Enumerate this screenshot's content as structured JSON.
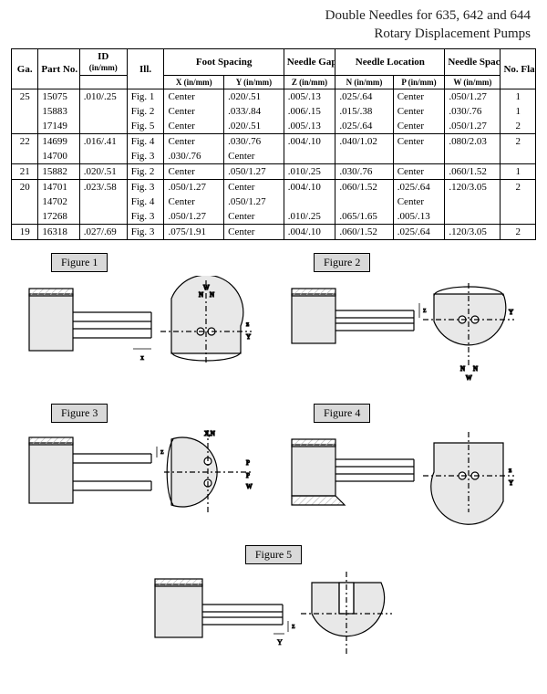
{
  "title_line1": "Double Needles for 635, 642 and 644",
  "title_line2": "Rotary Displacement Pumps",
  "headers": {
    "ga": "Ga.",
    "part_no": "Part No.",
    "id": "ID",
    "id_sub": "(in/mm)",
    "ill": "Ill.",
    "foot_spacing": "Foot Spacing",
    "x": "X (in/mm)",
    "y": "Y (in/mm)",
    "needle_gap": "Needle Gap",
    "z": "Z (in/mm)",
    "needle_loc": "Needle Location",
    "n": "N (in/mm)",
    "p": "P (in/mm)",
    "needle_spacing": "Needle Spacing",
    "w": "W (in/mm)",
    "flats": "No. Flats"
  },
  "rows": [
    {
      "ga": "25",
      "part": "15075",
      "id": ".010/.25",
      "ill": "Fig. 1",
      "x": "Center",
      "y": ".020/.51",
      "z": ".005/.13",
      "n": ".025/.64",
      "p": "Center",
      "w": ".050/1.27",
      "flats": "1"
    },
    {
      "ga": "",
      "part": "15883",
      "id": "",
      "ill": "Fig. 2",
      "x": "Center",
      "y": ".033/.84",
      "z": ".006/.15",
      "n": ".015/.38",
      "p": "Center",
      "w": ".030/.76",
      "flats": "1"
    },
    {
      "ga": "",
      "part": "17149",
      "id": "",
      "ill": "Fig. 5",
      "x": "Center",
      "y": ".020/.51",
      "z": ".005/.13",
      "n": ".025/.64",
      "p": "Center",
      "w": ".050/1.27",
      "flats": "2"
    },
    {
      "ga": "22",
      "part": "14699",
      "id": ".016/.41",
      "ill": "Fig. 4",
      "x": "Center",
      "y": ".030/.76",
      "z": ".004/.10",
      "n": ".040/1.02",
      "p": "Center",
      "w": ".080/2.03",
      "flats": "2"
    },
    {
      "ga": "",
      "part": "14700",
      "id": "",
      "ill": "Fig. 3",
      "x": ".030/.76",
      "y": "Center",
      "z": "",
      "n": "",
      "p": "",
      "w": "",
      "flats": ""
    },
    {
      "ga": "21",
      "part": "15882",
      "id": ".020/.51",
      "ill": "Fig. 2",
      "x": "Center",
      "y": ".050/1.27",
      "z": ".010/.25",
      "n": ".030/.76",
      "p": "Center",
      "w": ".060/1.52",
      "flats": "1"
    },
    {
      "ga": "20",
      "part": "14701",
      "id": ".023/.58",
      "ill": "Fig. 3",
      "x": ".050/1.27",
      "y": "Center",
      "z": ".004/.10",
      "n": ".060/1.52",
      "p": ".025/.64",
      "w": ".120/3.05",
      "flats": "2"
    },
    {
      "ga": "",
      "part": "14702",
      "id": "",
      "ill": "Fig. 4",
      "x": "Center",
      "y": ".050/1.27",
      "z": "",
      "n": "",
      "p": "Center",
      "w": "",
      "flats": ""
    },
    {
      "ga": "",
      "part": "17268",
      "id": "",
      "ill": "Fig. 3",
      "x": ".050/1.27",
      "y": "Center",
      "z": ".010/.25",
      "n": ".065/1.65",
      "p": ".005/.13",
      "w": "",
      "flats": ""
    },
    {
      "ga": "19",
      "part": "16318",
      "id": ".027/.69",
      "ill": "Fig. 3",
      "x": ".075/1.91",
      "y": "Center",
      "z": ".004/.10",
      "n": ".060/1.52",
      "p": ".025/.64",
      "w": ".120/3.05",
      "flats": "2"
    }
  ],
  "groups": [
    3,
    2,
    1,
    3,
    1
  ],
  "fig_labels": {
    "f1": "Figure 1",
    "f2": "Figure 2",
    "f3": "Figure 3",
    "f4": "Figure 4",
    "f5": "Figure 5"
  },
  "colors": {
    "hatch": "#b8b8b8",
    "fill": "#e8e8e8",
    "line": "#000000"
  }
}
